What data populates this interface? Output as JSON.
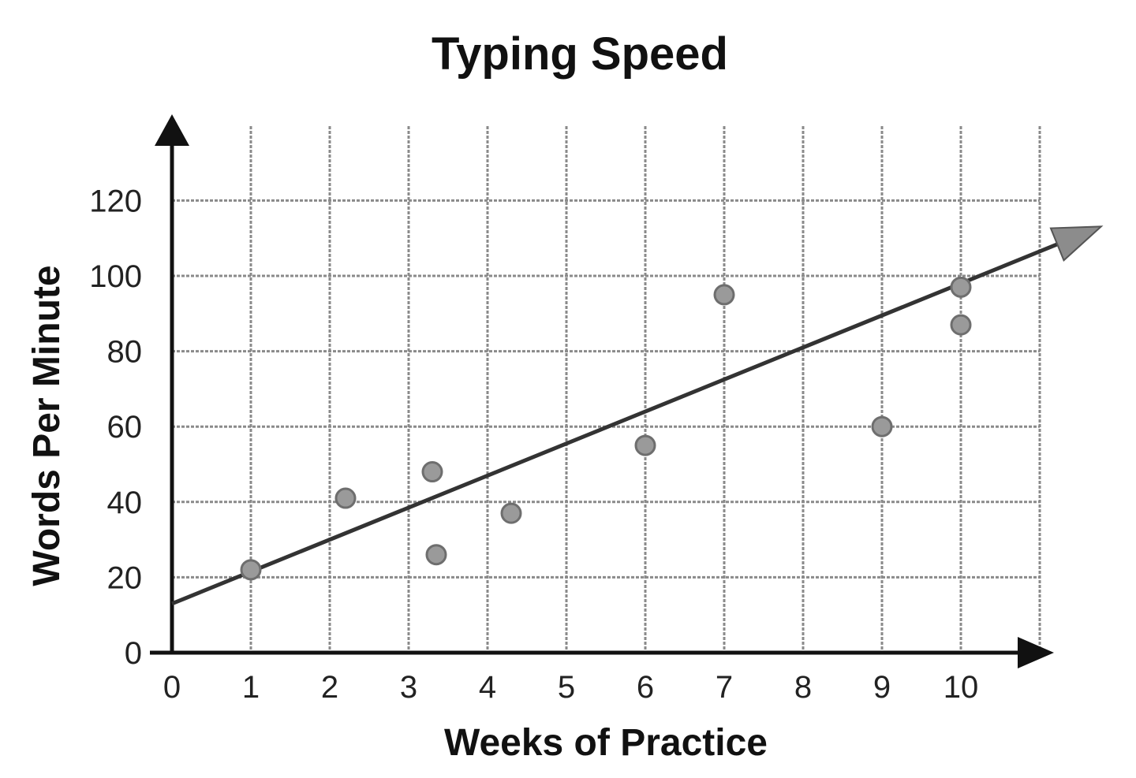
{
  "chart_data": {
    "type": "scatter",
    "title": "Typing Speed",
    "xlabel": "Weeks of Practice",
    "ylabel": "Words Per Minute",
    "xlim": [
      0,
      10
    ],
    "ylim": [
      0,
      120
    ],
    "xticks": [
      "0",
      "1",
      "2",
      "3",
      "4",
      "5",
      "6",
      "7",
      "8",
      "9",
      "10"
    ],
    "yticks": [
      "0",
      "20",
      "40",
      "60",
      "80",
      "100",
      "120"
    ],
    "grid": true,
    "points": [
      {
        "x": 1,
        "y": 22
      },
      {
        "x": 2.2,
        "y": 41
      },
      {
        "x": 3.3,
        "y": 48
      },
      {
        "x": 3.35,
        "y": 26
      },
      {
        "x": 4.3,
        "y": 37
      },
      {
        "x": 6,
        "y": 55
      },
      {
        "x": 7,
        "y": 95
      },
      {
        "x": 9,
        "y": 60
      },
      {
        "x": 10,
        "y": 97
      },
      {
        "x": 10,
        "y": 87
      }
    ],
    "trend_line": {
      "intercept": 13,
      "slope": 8.5,
      "x_end": 11.5
    },
    "colors": {
      "points": "#9a9a9a",
      "line": "#333333",
      "grid": "#8a8a8a"
    }
  }
}
